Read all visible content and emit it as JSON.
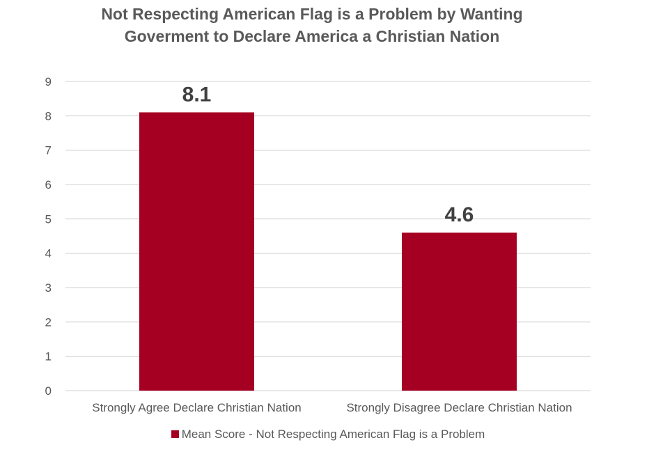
{
  "chart_data": {
    "type": "bar",
    "title_lines": [
      "Not Respecting American Flag is a Problem by Wanting",
      "Goverment to Declare America a Christian Nation"
    ],
    "categories": [
      "Strongly Agree Declare Christian Nation",
      "Strongly Disagree Declare Christian Nation"
    ],
    "series": [
      {
        "name": "Mean Score - Not Respecting American Flag is a Problem",
        "values": [
          8.1,
          4.6
        ],
        "data_labels": [
          "8.1",
          "4.6"
        ],
        "color": "#A50021"
      }
    ],
    "ylim": [
      0,
      9
    ],
    "y_ticks": [
      0,
      1,
      2,
      3,
      4,
      5,
      6,
      7,
      8,
      9
    ],
    "xlabel": "",
    "ylabel": "",
    "grid": true,
    "legend_position": "bottom"
  }
}
